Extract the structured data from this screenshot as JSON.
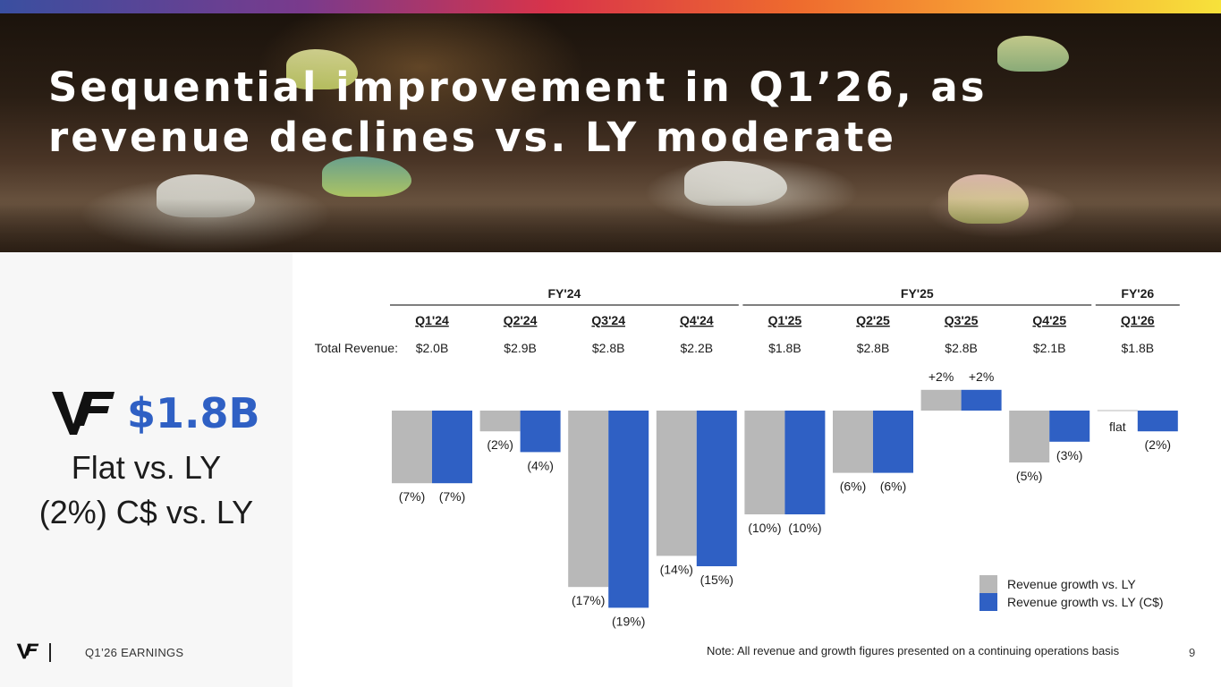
{
  "slide": {
    "title": "Sequential improvement in Q1’26, as revenue declines vs. LY moderate",
    "page_number": "9",
    "footer_label": "Q1’26 EARNINGS",
    "note": "Note: All revenue and growth figures presented on a continuing operations basis"
  },
  "kpi": {
    "value": "$1.8B",
    "line1": "Flat vs. LY",
    "line2": "(2%) C$ vs. LY"
  },
  "colors": {
    "gray": "#b8b8b8",
    "blue": "#2f60c4",
    "accent_text": "#2f60c4"
  },
  "chart_data": {
    "type": "bar",
    "row_label": "Total Revenue:",
    "fiscal_years": [
      {
        "label": "FY'24",
        "quarters": 4
      },
      {
        "label": "FY'25",
        "quarters": 4
      },
      {
        "label": "FY'26",
        "quarters": 1
      }
    ],
    "categories": [
      "Q1'24",
      "Q2'24",
      "Q3'24",
      "Q4'24",
      "Q1'25",
      "Q2'25",
      "Q3'25",
      "Q4'25",
      "Q1'26"
    ],
    "total_revenue": [
      "$2.0B",
      "$2.9B",
      "$2.8B",
      "$2.2B",
      "$1.8B",
      "$2.8B",
      "$2.8B",
      "$2.1B",
      "$1.8B"
    ],
    "series": [
      {
        "name": "Revenue growth vs. LY",
        "color": "#b8b8b8",
        "values": [
          -7,
          -2,
          -17,
          -14,
          -10,
          -6,
          2,
          -5,
          0
        ],
        "labels": [
          "(7%)",
          "(2%)",
          "(17%)",
          "(14%)",
          "(10%)",
          "(6%)",
          "+2%",
          "(5%)",
          "flat"
        ]
      },
      {
        "name": "Revenue growth vs. LY (C$)",
        "color": "#2f60c4",
        "values": [
          -7,
          -4,
          -19,
          -15,
          -10,
          -6,
          2,
          -3,
          -2
        ],
        "labels": [
          "(7%)",
          "(4%)",
          "(19%)",
          "(15%)",
          "(10%)",
          "(6%)",
          "+2%",
          "(3%)",
          "(2%)"
        ]
      }
    ],
    "ylim": [
      -19,
      2
    ],
    "legend_position": "bottom-right"
  }
}
